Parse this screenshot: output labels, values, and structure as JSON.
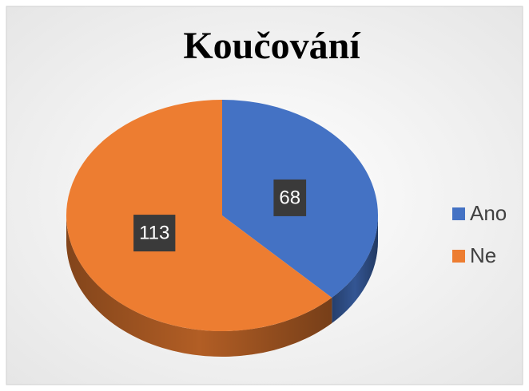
{
  "chart_data": {
    "type": "pie3d",
    "title": "Koučování",
    "categories": [
      "Ano",
      "Ne"
    ],
    "values": [
      68,
      113
    ],
    "colors": [
      "#4472c4",
      "#ed7d31"
    ],
    "legend": "right"
  }
}
